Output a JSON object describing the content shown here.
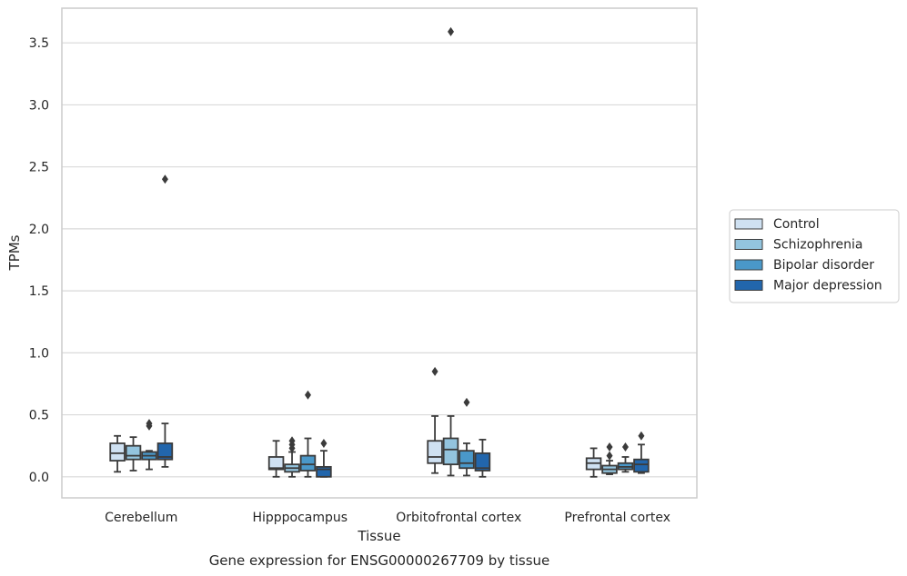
{
  "chart_data": {
    "type": "box",
    "caption": "Gene expression for ENSG00000267709 by tissue",
    "xlabel": "Tissue",
    "ylabel": "TPMs",
    "ylim": [
      -0.17,
      3.78
    ],
    "yticks": [
      0.0,
      0.5,
      1.0,
      1.5,
      2.0,
      2.5,
      3.0,
      3.5
    ],
    "ytick_labels": [
      "0.0",
      "0.5",
      "1.0",
      "1.5",
      "2.0",
      "2.5",
      "3.0",
      "3.5"
    ],
    "grid": "horizontal",
    "legend_position": "right",
    "categories": [
      "Cerebellum",
      "Hipppocampus",
      "Orbitofrontal cortex",
      "Prefrontal cortex"
    ],
    "series": [
      {
        "name": "Control",
        "color": "#cfe1f2",
        "boxes": [
          {
            "q1": 0.13,
            "median": 0.19,
            "q3": 0.27,
            "whisker_low": 0.04,
            "whisker_high": 0.33,
            "outliers": []
          },
          {
            "q1": 0.06,
            "median": 0.07,
            "q3": 0.16,
            "whisker_low": 0.0,
            "whisker_high": 0.29,
            "outliers": []
          },
          {
            "q1": 0.11,
            "median": 0.16,
            "q3": 0.29,
            "whisker_low": 0.03,
            "whisker_high": 0.49,
            "outliers": [
              0.85
            ]
          },
          {
            "q1": 0.06,
            "median": 0.11,
            "q3": 0.15,
            "whisker_low": 0.0,
            "whisker_high": 0.23,
            "outliers": []
          }
        ]
      },
      {
        "name": "Schizophrenia",
        "color": "#93c4de",
        "boxes": [
          {
            "q1": 0.14,
            "median": 0.17,
            "q3": 0.25,
            "whisker_low": 0.05,
            "whisker_high": 0.32,
            "outliers": []
          },
          {
            "q1": 0.04,
            "median": 0.07,
            "q3": 0.1,
            "whisker_low": 0.0,
            "whisker_high": 0.2,
            "outliers": [
              0.23,
              0.26,
              0.29
            ]
          },
          {
            "q1": 0.1,
            "median": 0.22,
            "q3": 0.31,
            "whisker_low": 0.01,
            "whisker_high": 0.49,
            "outliers": [
              3.59
            ]
          },
          {
            "q1": 0.03,
            "median": 0.06,
            "q3": 0.09,
            "whisker_low": 0.02,
            "whisker_high": 0.13,
            "outliers": [
              0.17,
              0.24
            ]
          }
        ]
      },
      {
        "name": "Bipolar disorder",
        "color": "#4a98c9",
        "boxes": [
          {
            "q1": 0.14,
            "median": 0.17,
            "q3": 0.2,
            "whisker_low": 0.06,
            "whisker_high": 0.21,
            "outliers": [
              0.41,
              0.43
            ]
          },
          {
            "q1": 0.05,
            "median": 0.1,
            "q3": 0.17,
            "whisker_low": 0.0,
            "whisker_high": 0.31,
            "outliers": [
              0.66
            ]
          },
          {
            "q1": 0.07,
            "median": 0.11,
            "q3": 0.21,
            "whisker_low": 0.01,
            "whisker_high": 0.27,
            "outliers": [
              0.6
            ]
          },
          {
            "q1": 0.06,
            "median": 0.08,
            "q3": 0.11,
            "whisker_low": 0.04,
            "whisker_high": 0.16,
            "outliers": [
              0.24
            ]
          }
        ]
      },
      {
        "name": "Major depression",
        "color": "#2266ac",
        "boxes": [
          {
            "q1": 0.14,
            "median": 0.16,
            "q3": 0.27,
            "whisker_low": 0.08,
            "whisker_high": 0.43,
            "outliers": [
              2.4
            ]
          },
          {
            "q1": 0.0,
            "median": 0.06,
            "q3": 0.08,
            "whisker_low": 0.0,
            "whisker_high": 0.21,
            "outliers": [
              0.27
            ]
          },
          {
            "q1": 0.05,
            "median": 0.07,
            "q3": 0.19,
            "whisker_low": 0.0,
            "whisker_high": 0.3,
            "outliers": []
          },
          {
            "q1": 0.04,
            "median": 0.1,
            "q3": 0.14,
            "whisker_low": 0.03,
            "whisker_high": 0.26,
            "outliers": [
              0.33
            ]
          }
        ]
      }
    ]
  }
}
